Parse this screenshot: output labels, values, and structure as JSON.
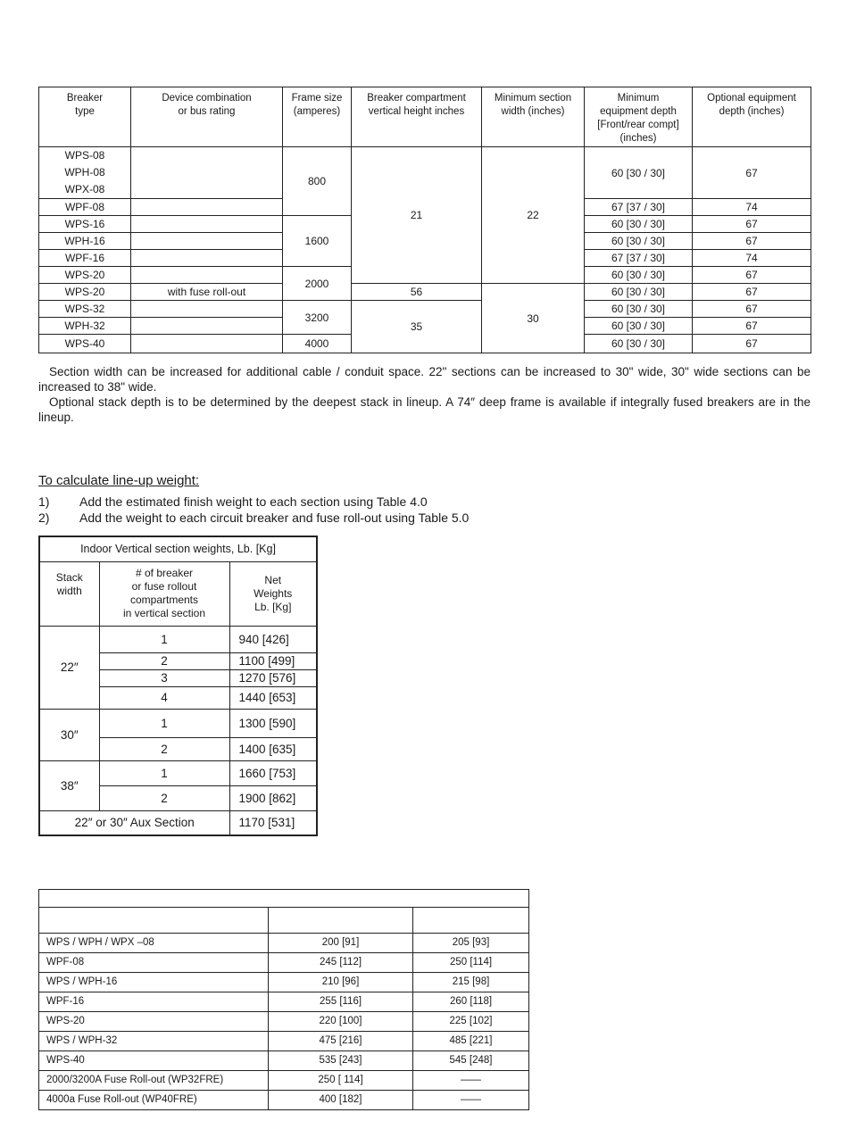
{
  "breaker_table": {
    "headers": [
      "Breaker\ntype",
      "Device combination\nor bus  rating",
      "Frame size\n(amperes)",
      "Breaker compartment\nvertical height inches",
      "Minimum section\nwidth  (inches)",
      "Minimum\nequipment depth\n[Front/rear compt]\n(inches)",
      "Optional equipment\ndepth (inches)"
    ],
    "rows": [
      {
        "type": "WPS-08\nWPH-08\nWPX-08",
        "device": "",
        "depth": "60 [30 / 30]",
        "optional": "67"
      },
      {
        "type": "WPF-08",
        "device": "",
        "depth": "67 [37 / 30]",
        "optional": "74"
      },
      {
        "type": "WPS-16",
        "device": "",
        "depth": "60 [30 / 30]",
        "optional": "67"
      },
      {
        "type": "WPH-16",
        "device": "",
        "depth": "60 [30 / 30]",
        "optional": "67"
      },
      {
        "type": "WPF-16",
        "device": "",
        "depth": "67 [37 / 30]",
        "optional": "74"
      },
      {
        "type": "WPS-20",
        "device": "",
        "depth": "60 [30 / 30]",
        "optional": "67"
      },
      {
        "type": "WPS-20",
        "device": "with fuse roll-out",
        "depth": "60 [30 / 30]",
        "optional": "67"
      },
      {
        "type": "WPS-32",
        "device": "",
        "depth": "60 [30 / 30]",
        "optional": "67"
      },
      {
        "type": "WPH-32",
        "device": "",
        "depth": "60 [30 / 30]",
        "optional": "67"
      },
      {
        "type": "WPS-40",
        "device": "",
        "depth": "60 [30 / 30]",
        "optional": "67"
      }
    ],
    "frame_groups": [
      {
        "value": "800",
        "rows": 2
      },
      {
        "value": "1600",
        "rows": 3
      },
      {
        "value": "2000",
        "rows": 2
      },
      {
        "value": "3200",
        "rows": 2
      },
      {
        "value": "4000",
        "rows": 1
      }
    ],
    "height_groups": [
      {
        "value": "21",
        "rows": 6
      },
      {
        "value": "56",
        "rows": 1
      },
      {
        "value": "35",
        "rows": 3
      }
    ],
    "width_groups": [
      {
        "value": "22",
        "rows": 6
      },
      {
        "value": "30",
        "rows": 4
      }
    ]
  },
  "notes": {
    "p1": "Section width can be increased for additional cable / conduit space. 22\" sections can be increased to 30\" wide, 30\" wide sections can be increased to 38\" wide.",
    "p2": "Optional stack depth is to be determined by the deepest stack in lineup.  A 74″ deep frame is available if integrally fused breakers are in the lineup."
  },
  "calc": {
    "heading": "To calculate line-up weight:",
    "steps": [
      {
        "n": "1)",
        "text": "Add the estimated finish weight to each section using Table 4.0"
      },
      {
        "n": "2)",
        "text": "Add the weight to each circuit breaker and fuse roll-out using Table 5.0"
      }
    ]
  },
  "section_weights": {
    "title": "Indoor Vertical section weights, Lb. [Kg]",
    "headers": [
      "Stack\nwidth",
      "# of breaker\nor fuse rollout\ncompartments\nin vertical section",
      "Net\nWeights\nLb. [Kg]"
    ],
    "groups": [
      {
        "width": "22″",
        "rows": [
          {
            "n": "1",
            "w": "940    [426]"
          },
          {
            "n": "2",
            "w": "1100  [499]"
          },
          {
            "n": "3",
            "w": "1270  [576]"
          },
          {
            "n": "4",
            "w": "1440  [653]"
          }
        ]
      },
      {
        "width": "30″",
        "rows": [
          {
            "n": "1",
            "w": "1300  [590]"
          },
          {
            "n": "2",
            "w": "1400  [635]"
          }
        ]
      },
      {
        "width": "38″",
        "rows": [
          {
            "n": "1",
            "w": "1660  [753]"
          },
          {
            "n": "2",
            "w": "1900  [862]"
          }
        ]
      }
    ],
    "aux": {
      "label": "22″ or 30″ Aux Section",
      "w": "1170  [531]"
    }
  },
  "breaker_weights": {
    "rows": [
      [
        "WPS / WPH / WPX –08",
        "200 [91]",
        "205 [93]"
      ],
      [
        "WPF-08",
        "245 [112]",
        "250 [114]"
      ],
      [
        "WPS / WPH-16",
        "210 [96]",
        "215 [98]"
      ],
      [
        "WPF-16",
        "255 [116]",
        "260 [118]"
      ],
      [
        "WPS-20",
        "220 [100]",
        "225 [102]"
      ],
      [
        "WPS / WPH-32",
        "475 [216]",
        "485 [221]"
      ],
      [
        "WPS-40",
        "535 [243]",
        "545 [248]"
      ],
      [
        "2000/3200A Fuse Roll-out (WP32FRE)",
        "250 [ 114]",
        "——"
      ],
      [
        "4000a Fuse Roll-out (WP40FRE)",
        "400 [182]",
        "——"
      ]
    ]
  }
}
